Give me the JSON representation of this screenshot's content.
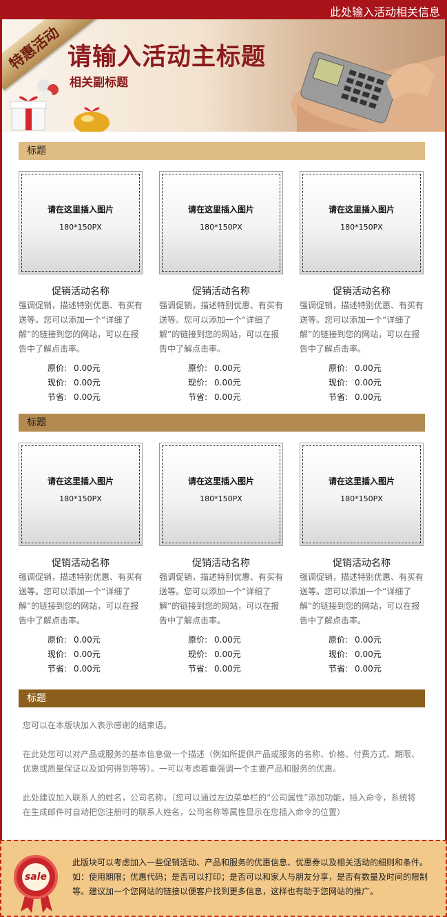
{
  "header": {
    "top_right_text": "此处输入活动相关信息",
    "ribbon_label": "特惠活动",
    "main_title": "请输入活动主标题",
    "subtitle": "相关副标题"
  },
  "sections": [
    {
      "title": "标题",
      "color": "#dfbc83",
      "products": [
        {
          "img_line1": "请在这里插入图片",
          "img_line2": "180*150PX",
          "name": "促销活动名称",
          "desc": "强调促销，描述特别优惠、有买有送等。您可以添加一个“详细了解”的链接到您的网站，可以在报告中了解点击率。",
          "original_label": "原价:",
          "original_value": "0.00元",
          "current_label": "现价:",
          "current_value": "0.00元",
          "save_label": "节省:",
          "save_value": "0.00元"
        },
        {
          "img_line1": "请在这里插入图片",
          "img_line2": "180*150PX",
          "name": "促销活动名称",
          "desc": "强调促销，描述特别优惠、有买有送等。您可以添加一个“详细了解”的链接到您的网站，可以在报告中了解点击率。",
          "original_label": "原价:",
          "original_value": "0.00元",
          "current_label": "现价:",
          "current_value": "0.00元",
          "save_label": "节省:",
          "save_value": "0.00元"
        },
        {
          "img_line1": "请在这里插入图片",
          "img_line2": "180*150PX",
          "name": "促销活动名称",
          "desc": "强调促销，描述特别优惠、有买有送等。您可以添加一个“详细了解”的链接到您的网站，可以在报告中了解点击率。",
          "original_label": "原价:",
          "original_value": "0.00元",
          "current_label": "现价:",
          "current_value": "0.00元",
          "save_label": "节省:",
          "save_value": "0.00元"
        }
      ]
    },
    {
      "title": "标题",
      "color": "#b38a4f",
      "products": [
        {
          "img_line1": "请在这里插入图片",
          "img_line2": "180*150PX",
          "name": "促销活动名称",
          "desc": "强调促销，描述特别优惠、有买有送等。您可以添加一个“详细了解”的链接到您的网站，可以在报告中了解点击率。",
          "original_label": "原价:",
          "original_value": "0.00元",
          "current_label": "现价:",
          "current_value": "0.00元",
          "save_label": "节省:",
          "save_value": "0.00元"
        },
        {
          "img_line1": "请在这里插入图片",
          "img_line2": "180*150PX",
          "name": "促销活动名称",
          "desc": "强调促销，描述特别优惠、有买有送等。您可以添加一个“详细了解”的链接到您的网站，可以在报告中了解点击率。",
          "original_label": "原价:",
          "original_value": "0.00元",
          "current_label": "现价:",
          "current_value": "0.00元",
          "save_label": "节省:",
          "save_value": "0.00元"
        },
        {
          "img_line1": "请在这里插入图片",
          "img_line2": "180*150PX",
          "name": "促销活动名称",
          "desc": "强调促销，描述特别优惠、有买有送等。您可以添加一个“详细了解”的链接到您的网站，可以在报告中了解点击率。",
          "original_label": "原价:",
          "original_value": "0.00元",
          "current_label": "现价:",
          "current_value": "0.00元",
          "save_label": "节省:",
          "save_value": "0.00元"
        }
      ]
    }
  ],
  "closing": {
    "title": "标题",
    "color": "#8c5f1d",
    "paragraphs": [
      "您可以在本版块加入表示感谢的结束语。",
      "在此处您可以对产品或服务的基本信息做一个描述（例如所提供产品或服务的名称、价格、付费方式、期限、优惠或质量保证以及如何得到等等）。一可以考虑着重强调一个主要产品和服务的优惠。",
      "此处建议加入联系人的姓名，公司名称，（您可以通过左边菜单栏的“公司属性”添加功能，插入命令，系统将在生成邮件时自动把您注册时的联系人姓名，公司名称等属性显示在您插入命令的位置）"
    ]
  },
  "footer": {
    "badge_text": "sale",
    "text": "此版块可以考虑加入一些促销活动、产品和服务的优惠信息、优惠券以及相关活动的细则和条件。如：使用期限；优惠代码；是否可以打印；是否可以和家人与朋友分享，是否有数量及时间的限制等。建议加一个您网站的链接以便客户找到更多信息，这样也有助于您网站的推广。"
  },
  "colors": {
    "brand_red": "#a8141a",
    "title_red": "#8b1b1e",
    "footer_bg": "#f3c98a"
  }
}
